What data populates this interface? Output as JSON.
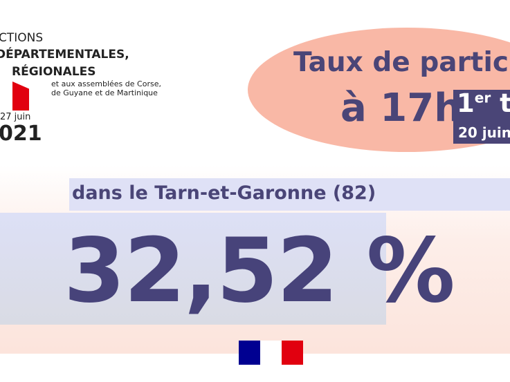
{
  "header": {
    "election_lines": [
      "CTIONS",
      "DÉPARTEMENTALES,",
      "RÉGIONALES"
    ],
    "subtitle_lines": [
      "et aux assemblées de Corse,",
      "de Guyane et de Martinique"
    ],
    "date": "27 juin",
    "year": "021"
  },
  "badge": {
    "title": "Taux de participa",
    "time": "à 17h",
    "round": "1",
    "round_suffix": "er",
    "round_rest": " to",
    "round_date": "20 juin"
  },
  "result": {
    "area": "dans le Tarn-et-Garonne (82)",
    "rate": "32,52 %"
  }
}
